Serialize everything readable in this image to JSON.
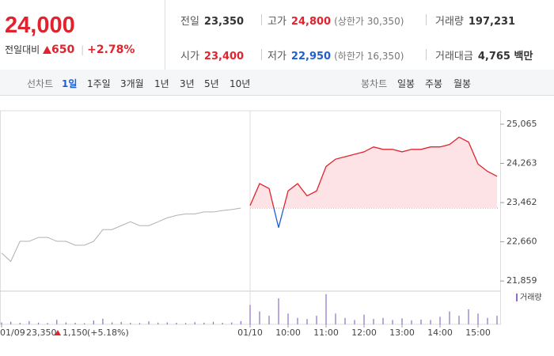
{
  "header": {
    "price": "24,000",
    "change_label": "전일대비",
    "change": "650",
    "change_pct": "+2.78%"
  },
  "info": {
    "prev_label": "전일",
    "prev": "23,350",
    "high_label": "고가",
    "high": "24,800",
    "high_note": "(상한가 30,350)",
    "volume_label": "거래량",
    "volume": "197,231",
    "open_label": "시가",
    "open": "23,400",
    "low_label": "저가",
    "low": "22,950",
    "low_note": "(하한가 16,350)",
    "amount_label": "거래대금",
    "amount": "4,765 백만"
  },
  "tabs": {
    "line_label": "선차트",
    "periods": [
      "1일",
      "1주일",
      "3개월",
      "1년",
      "3년",
      "5년",
      "10년"
    ],
    "candle_label": "봉차트",
    "candles": [
      "일봉",
      "주봉",
      "월봉"
    ]
  },
  "chart_data": {
    "type": "line",
    "categories": [
      "01/09",
      null,
      null,
      null,
      null,
      null,
      null,
      null,
      null,
      null,
      null,
      null,
      null,
      null,
      null,
      null,
      null,
      null,
      null,
      null,
      null,
      null,
      null,
      null,
      null,
      null,
      null,
      "01/10",
      null,
      null,
      null,
      "10:00",
      null,
      null,
      null,
      "11:00",
      null,
      null,
      null,
      "12:00",
      null,
      null,
      null,
      "13:00",
      null,
      null,
      null,
      "14:00",
      null,
      null,
      null,
      "15:00",
      null,
      null
    ],
    "series": [
      {
        "color": "#b0b0b0",
        "values": [
          22430,
          22260,
          22670,
          22670,
          22750,
          22750,
          22670,
          22670,
          22590,
          22590,
          22670,
          22910,
          22910,
          22990,
          23070,
          22990,
          22990,
          23070,
          23150,
          23200,
          23230,
          23230,
          23270,
          23270,
          23300,
          23320,
          23350,
          null,
          null,
          null,
          null,
          null,
          null,
          null,
          null,
          null,
          null,
          null,
          null,
          null,
          null,
          null,
          null,
          null,
          null,
          null,
          null,
          null,
          null,
          null,
          null,
          null,
          null,
          null
        ]
      },
      {
        "color": "#e0232e",
        "values": [
          null,
          null,
          null,
          null,
          null,
          null,
          null,
          null,
          null,
          null,
          null,
          null,
          null,
          null,
          null,
          null,
          null,
          null,
          null,
          null,
          null,
          null,
          null,
          null,
          null,
          null,
          null,
          23400,
          23850,
          23750,
          22950,
          23700,
          23850,
          23600,
          23700,
          24200,
          24350,
          24400,
          24450,
          24500,
          24600,
          24550,
          24550,
          24500,
          24550,
          24550,
          24600,
          24600,
          24650,
          24800,
          24700,
          24250,
          24100,
          24000
        ]
      }
    ],
    "baseline": 23350,
    "below_color": "#1f5fcf",
    "fill_color": "#fde3e5",
    "ylim": [
      21700,
      25210
    ],
    "yticks": [
      {
        "value": 21859,
        "label": "21,859"
      },
      {
        "value": 22660,
        "label": "22,660"
      },
      {
        "value": 23462,
        "label": "23,462"
      },
      {
        "value": 24263,
        "label": "24,263"
      },
      {
        "value": 25065,
        "label": "25,065"
      }
    ],
    "volume": {
      "name": "거래량",
      "color": "#8a70c4",
      "values": [
        900,
        1200,
        700,
        1500,
        800,
        600,
        2100,
        900,
        700,
        500,
        1800,
        2600,
        900,
        1100,
        700,
        600,
        1400,
        800,
        900,
        700,
        600,
        1000,
        800,
        1200,
        700,
        900,
        1500,
        9000,
        6000,
        4000,
        12000,
        5000,
        3000,
        2500,
        4000,
        14000,
        5000,
        3000,
        2000,
        4500,
        2500,
        3000,
        2000,
        2800,
        1800,
        2200,
        2000,
        3500,
        6000,
        4000,
        7000,
        5000,
        3000,
        4000
      ]
    },
    "y2lim": [
      0,
      15000
    ],
    "prev_day_summary": {
      "close": "23,350",
      "change": "1,150",
      "change_pct": "(+5.18%)"
    }
  }
}
